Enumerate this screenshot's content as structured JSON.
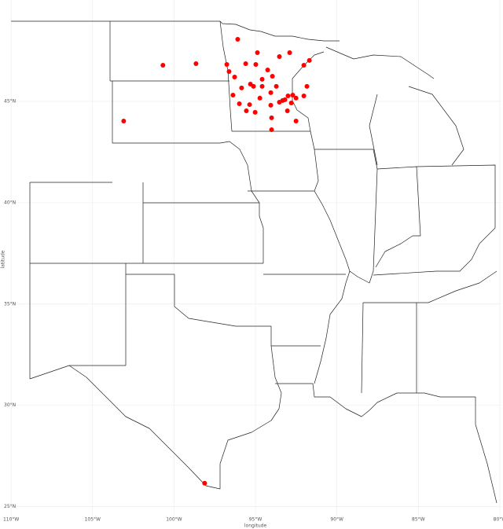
{
  "chart_data": {
    "type": "scatter",
    "x_label": "longitude",
    "y_label": "latitude",
    "color": "#ff0000",
    "grid": true,
    "xlim": [
      -110.2,
      -79.9
    ],
    "ylim": [
      24.6,
      50
    ],
    "xticks": [
      {
        "value": -110,
        "label": "110°W"
      },
      {
        "value": -105,
        "label": "105°W"
      },
      {
        "value": -100,
        "label": "100°W"
      },
      {
        "value": -95,
        "label": "95°W"
      },
      {
        "value": -90,
        "label": "90°W"
      },
      {
        "value": -85,
        "label": "85°W"
      },
      {
        "value": -80,
        "label": "80°W"
      }
    ],
    "yticks": [
      {
        "value": 25,
        "label": "25°N"
      },
      {
        "value": 30,
        "label": "30°N"
      },
      {
        "value": 35,
        "label": "35°N"
      },
      {
        "value": 40,
        "label": "40°N"
      },
      {
        "value": 45,
        "label": "45°N"
      }
    ],
    "x": [
      -96.09,
      -100.68,
      -98.65,
      -96.76,
      -94.88,
      -95.6,
      -94.98,
      -93.53,
      -92.9,
      -92.03,
      -91.69,
      -103.09,
      -96.62,
      -96.28,
      -94.25,
      -93.96,
      -95.31,
      -95.12,
      -95.85,
      -94.59,
      -93.72,
      -94.06,
      -96.38,
      -94.73,
      -95.36,
      -95.99,
      -95.56,
      -95.02,
      -94.06,
      -93.53,
      -93.19,
      -93.0,
      -92.71,
      -92.51,
      -92.8,
      -93.33,
      -92.51,
      -94.01,
      -94.01,
      -91.84,
      -92.03,
      -98.12,
      -93.04,
      -94.59
    ],
    "values": [
      48.06,
      46.78,
      46.86,
      46.82,
      47.4,
      46.86,
      46.82,
      47.21,
      47.4,
      46.78,
      47.02,
      44.03,
      46.47,
      46.2,
      46.55,
      46.24,
      45.85,
      45.74,
      45.66,
      45.74,
      45.74,
      45.43,
      45.31,
      45.16,
      44.84,
      44.88,
      44.53,
      44.46,
      44.81,
      44.96,
      45.08,
      45.27,
      45.31,
      45.16,
      44.92,
      45.04,
      44.03,
      44.19,
      43.6,
      45.74,
      45.27,
      26.16,
      44.53,
      46.09
    ]
  }
}
